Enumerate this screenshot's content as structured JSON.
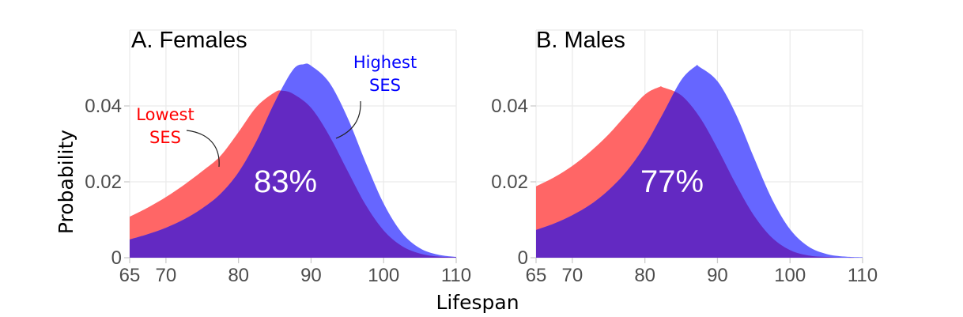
{
  "chart_data": {
    "type": "area",
    "xlabel": "Lifespan",
    "ylabel": "Probability",
    "colors": {
      "lowest": "#ff0000",
      "highest": "#0000ff",
      "overlap": "#6329c2",
      "lowest_fill": "#ff6666",
      "highest_fill": "#6666ff"
    },
    "panels": [
      {
        "title": "A. Females",
        "overlap_label": "83%",
        "xlim": [
          65,
          110
        ],
        "ylim": [
          0,
          0.06
        ],
        "x_ticks": [
          "65",
          "70",
          "80",
          "90",
          "100",
          "110"
        ],
        "y_ticks": [
          "0",
          "0.02",
          "0.04"
        ],
        "annotations": [
          {
            "text": [
              "Lowest",
              "SES"
            ],
            "series": "Lowest SES"
          },
          {
            "text": [
              "Highest",
              "SES"
            ],
            "series": "Highest SES"
          }
        ],
        "series": [
          {
            "name": "Lowest SES",
            "x": [
              65,
              67.5,
              70,
              72.5,
              75,
              77.5,
              80,
              82.5,
              85,
              86,
              87.5,
              90,
              92.5,
              95,
              97.5,
              100,
              102.5,
              105,
              107.5,
              110
            ],
            "y": [
              0.0108,
              0.0132,
              0.016,
              0.0192,
              0.0228,
              0.0268,
              0.0331,
              0.0398,
              0.0436,
              0.044,
              0.0432,
              0.0395,
              0.0322,
              0.023,
              0.014,
              0.0072,
              0.0031,
              0.0011,
              0.0003,
              0.0001
            ]
          },
          {
            "name": "Highest SES",
            "x": [
              65,
              67.5,
              70,
              72.5,
              75,
              77.5,
              80,
              82.5,
              85,
              87.5,
              89,
              90,
              92.5,
              95,
              97.5,
              100,
              102.5,
              105,
              107.5,
              110
            ],
            "y": [
              0.0048,
              0.0062,
              0.0079,
              0.0101,
              0.013,
              0.0168,
              0.0225,
              0.0308,
              0.041,
              0.0495,
              0.051,
              0.0506,
              0.0462,
              0.037,
              0.0252,
              0.0143,
              0.0066,
              0.0025,
              0.0008,
              0.0002
            ]
          }
        ]
      },
      {
        "title": "B. Males",
        "overlap_label": "77%",
        "xlim": [
          65,
          110
        ],
        "ylim": [
          0,
          0.06
        ],
        "x_ticks": [
          "65",
          "70",
          "80",
          "90",
          "100",
          "110"
        ],
        "y_ticks": [
          "0",
          "0.02",
          "0.04"
        ],
        "annotations": [],
        "series": [
          {
            "name": "Lowest SES",
            "x": [
              65,
              67.5,
              70,
              72.5,
              75,
              77.5,
              80,
              82,
              82.5,
              85,
              87.5,
              90,
              92.5,
              95,
              97.5,
              100,
              102.5,
              105,
              107.5,
              110
            ],
            "y": [
              0.0188,
              0.0212,
              0.0242,
              0.028,
              0.0325,
              0.0378,
              0.043,
              0.045,
              0.0449,
              0.0428,
              0.0372,
              0.0288,
              0.0195,
              0.0112,
              0.0053,
              0.002,
              0.0006,
              0.0002,
              0.0,
              0.0
            ]
          },
          {
            "name": "Highest SES",
            "x": [
              65,
              67.5,
              70,
              72.5,
              75,
              77.5,
              80,
              82.5,
              85,
              87,
              87.5,
              90,
              92.5,
              95,
              97.5,
              100,
              102.5,
              105,
              107.5,
              110
            ],
            "y": [
              0.0073,
              0.009,
              0.0112,
              0.014,
              0.0178,
              0.0228,
              0.0295,
              0.038,
              0.0468,
              0.0505,
              0.0503,
              0.0465,
              0.038,
              0.0265,
              0.0155,
              0.0075,
              0.003,
              0.001,
              0.0003,
              0.0001
            ]
          }
        ]
      }
    ]
  }
}
